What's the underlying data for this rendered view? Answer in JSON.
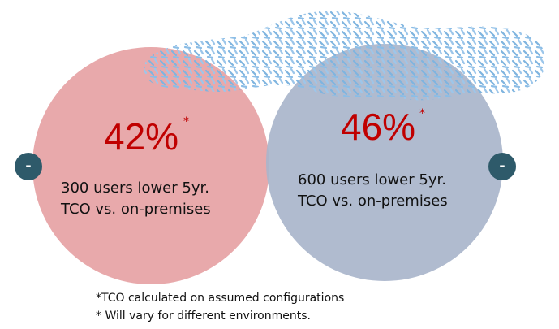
{
  "left": {
    "figure": "42%",
    "mark": "*",
    "lines": [
      "300 users lower 5yr.",
      "TCO vs. on-premises"
    ]
  },
  "right": {
    "figure": "46%",
    "mark": "*",
    "lines": [
      "600 users lower 5yr.",
      "TCO vs. on-premises"
    ]
  },
  "footnotes": [
    "*TCO calculated on assumed configurations",
    "* Will vary for different environments."
  ],
  "buttons": [
    "-",
    "-"
  ]
}
